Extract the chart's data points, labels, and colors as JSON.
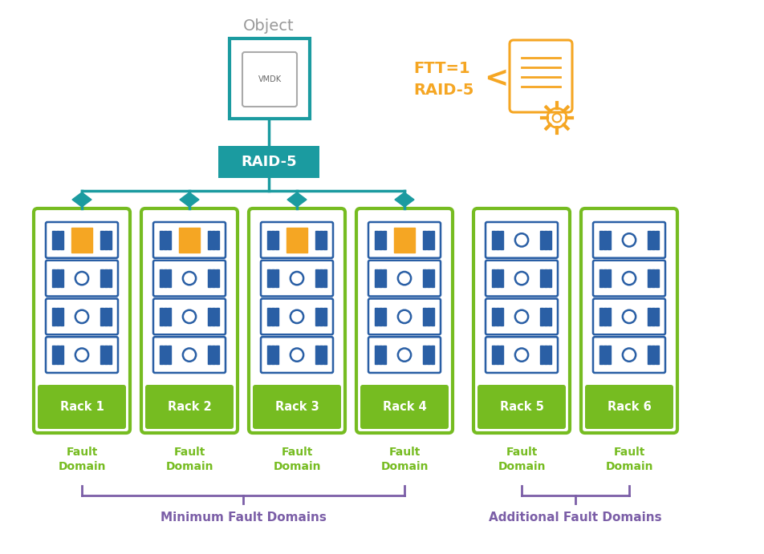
{
  "bg_color": "#ffffff",
  "teal_color": "#1B9BA0",
  "green_color": "#76BC21",
  "orange_color": "#F5A623",
  "purple_color": "#7B5EA7",
  "gray_color": "#999999",
  "blue_server": "#2A5FA5",
  "rack_labels": [
    "Rack 1",
    "Rack 2",
    "Rack 3",
    "Rack 4",
    "Rack 5",
    "Rack 6"
  ],
  "rack_active": [
    true,
    true,
    true,
    true,
    false,
    false
  ],
  "min_label": "Minimum Fault Domains",
  "add_label": "Additional Fault Domains",
  "n_racks": 6,
  "n_servers": 4
}
